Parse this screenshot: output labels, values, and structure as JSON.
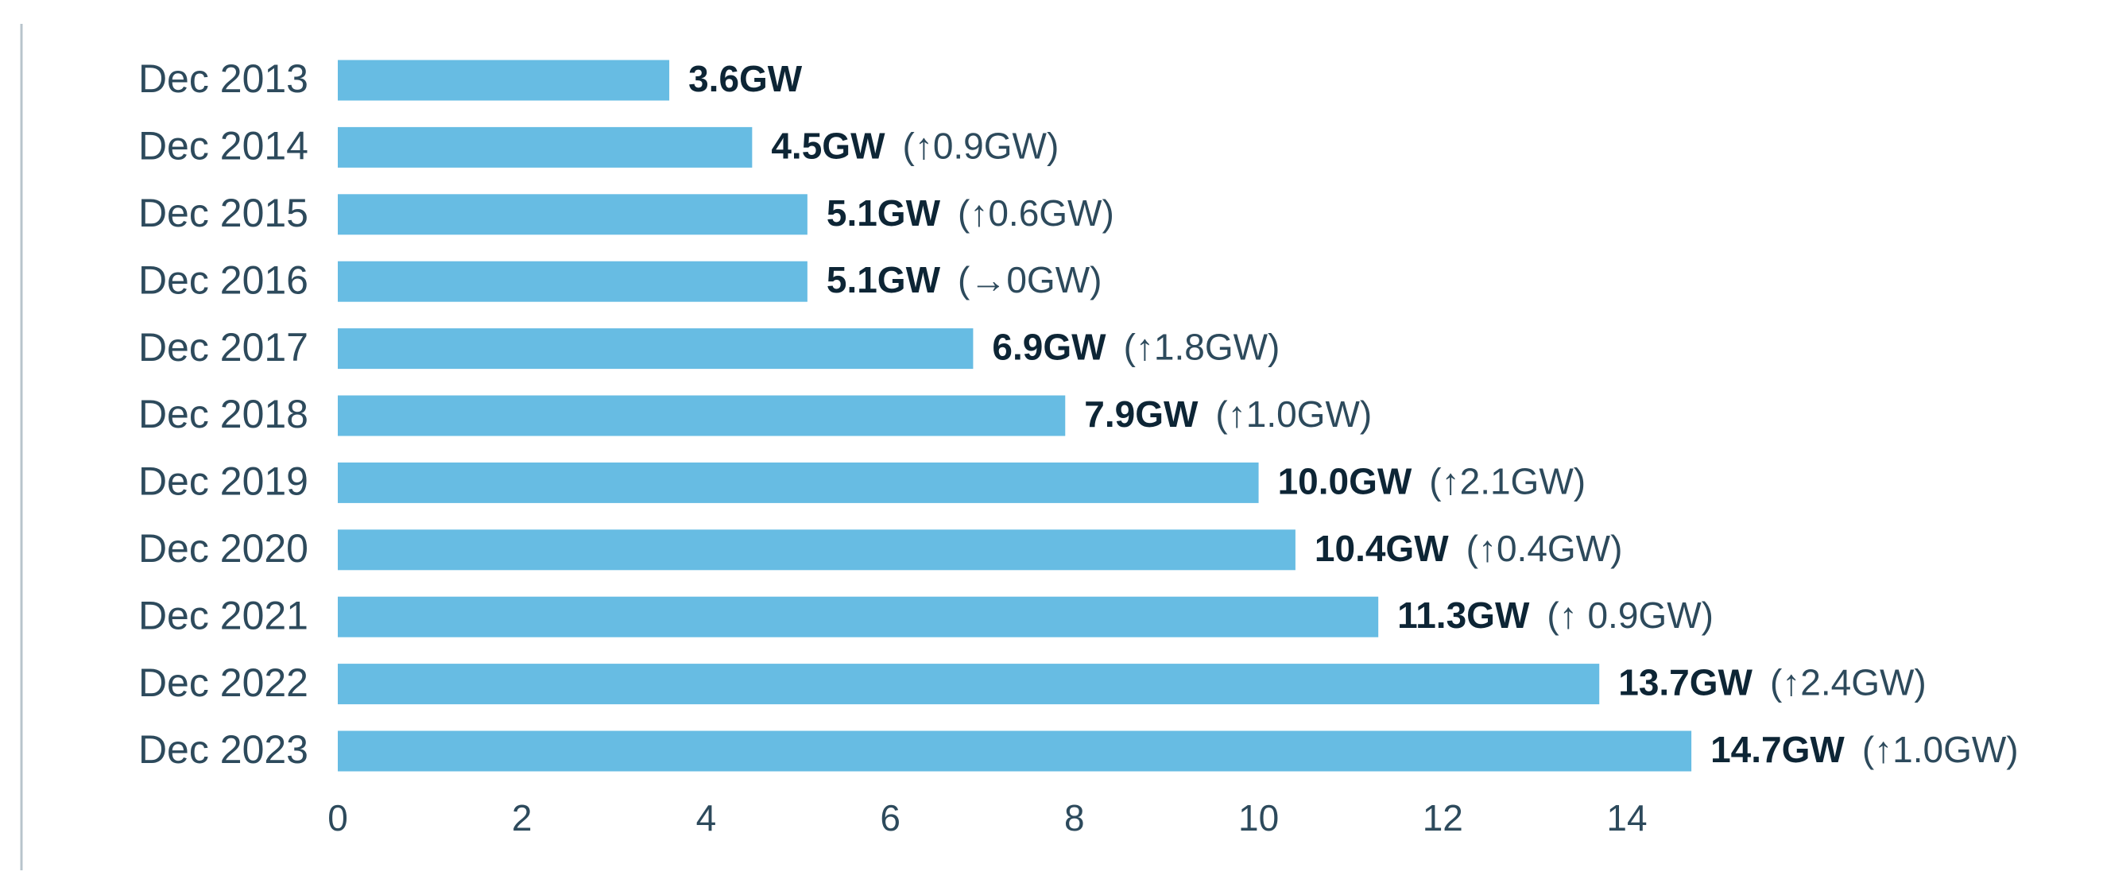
{
  "chart_data": {
    "type": "bar",
    "orientation": "horizontal",
    "categories": [
      "Dec 2013",
      "Dec 2014",
      "Dec 2015",
      "Dec 2016",
      "Dec 2017",
      "Dec 2018",
      "Dec 2019",
      "Dec 2020",
      "Dec 2021",
      "Dec 2022",
      "Dec 2023"
    ],
    "values": [
      3.6,
      4.5,
      5.1,
      5.1,
      6.9,
      7.9,
      10.0,
      10.4,
      11.3,
      13.7,
      14.7
    ],
    "value_labels": [
      "3.6GW",
      "4.5GW",
      "5.1GW",
      "5.1GW",
      "6.9GW",
      "7.9GW",
      "10.0GW",
      "10.4GW",
      "11.3GW",
      "13.7GW",
      "14.7GW"
    ],
    "change_labels": [
      null,
      "(↑0.9GW)",
      "(↑0.6GW)",
      "(→0GW)",
      "(↑1.8GW)",
      "(↑1.0GW)",
      "(↑2.1GW)",
      "(↑0.4GW)",
      "(↑ 0.9GW)",
      "(↑2.4GW)",
      "(↑1.0GW)"
    ],
    "color": "#67bce3",
    "xlim": [
      0,
      16
    ],
    "xticks": [
      0,
      2,
      4,
      6,
      8,
      10,
      12,
      14
    ],
    "grid": false
  }
}
